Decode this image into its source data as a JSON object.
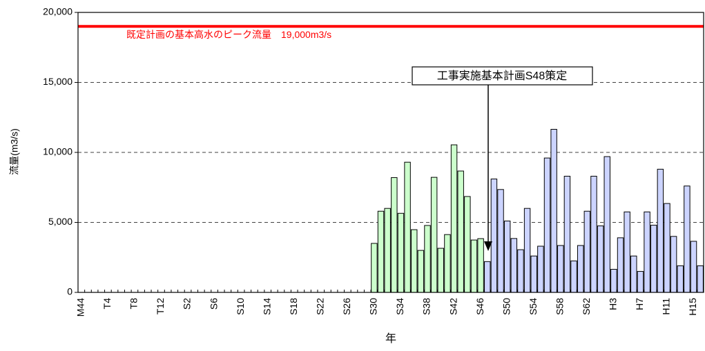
{
  "chart_data": {
    "type": "bar",
    "y_label": "流量(m3/s)",
    "x_label": "年",
    "categories": [
      "M44",
      null,
      null,
      null,
      "T4",
      null,
      null,
      null,
      "T8",
      null,
      null,
      null,
      "T12",
      null,
      null,
      null,
      "S2",
      null,
      null,
      null,
      "S6",
      null,
      null,
      null,
      "S10",
      null,
      null,
      null,
      "S14",
      null,
      null,
      null,
      "S18",
      null,
      null,
      null,
      "S22",
      null,
      null,
      null,
      "S26",
      null,
      null,
      null,
      "S30",
      null,
      null,
      null,
      "S34",
      null,
      null,
      null,
      "S38",
      null,
      null,
      null,
      "S42",
      null,
      null,
      null,
      "S46",
      null,
      null,
      null,
      "S50",
      null,
      null,
      null,
      "S54",
      null,
      null,
      null,
      "S58",
      null,
      null,
      null,
      "S62",
      null,
      null,
      null,
      "H3",
      null,
      null,
      null,
      "H7",
      null,
      null,
      null,
      "H11",
      null,
      null,
      null,
      "H15",
      null
    ],
    "series": [
      {
        "color": "#ccffcc",
        "values": [
          null,
          null,
          null,
          null,
          null,
          null,
          null,
          null,
          null,
          null,
          null,
          null,
          null,
          null,
          null,
          null,
          null,
          null,
          null,
          null,
          null,
          null,
          null,
          null,
          null,
          null,
          null,
          null,
          null,
          null,
          null,
          null,
          null,
          null,
          null,
          null,
          null,
          null,
          null,
          null,
          null,
          null,
          null,
          null,
          3500,
          5800,
          6000,
          8200,
          5650,
          9300,
          4480,
          3000,
          4780,
          8220,
          3150,
          4130,
          10540,
          8670,
          6850,
          3740,
          3840,
          null,
          null,
          null,
          null,
          null,
          null,
          null,
          null,
          null,
          null,
          null,
          null,
          null,
          null,
          null,
          null,
          null,
          null,
          null,
          null,
          null,
          null,
          null,
          null,
          null,
          null,
          null,
          null,
          null,
          null,
          null,
          null,
          null
        ]
      },
      {
        "color": "#ccd4ff",
        "values": [
          null,
          null,
          null,
          null,
          null,
          null,
          null,
          null,
          null,
          null,
          null,
          null,
          null,
          null,
          null,
          null,
          null,
          null,
          null,
          null,
          null,
          null,
          null,
          null,
          null,
          null,
          null,
          null,
          null,
          null,
          null,
          null,
          null,
          null,
          null,
          null,
          null,
          null,
          null,
          null,
          null,
          null,
          null,
          null,
          null,
          null,
          null,
          null,
          null,
          null,
          null,
          null,
          null,
          null,
          null,
          null,
          null,
          null,
          null,
          null,
          null,
          2200,
          8100,
          7350,
          5100,
          3850,
          3050,
          6000,
          2600,
          3300,
          9600,
          11650,
          3350,
          8300,
          2250,
          3350,
          5800,
          8300,
          4750,
          9700,
          1650,
          3900,
          5750,
          2600,
          1500,
          5750,
          4800,
          8800,
          6350,
          4000,
          1900,
          7600,
          3650,
          1900
        ]
      }
    ],
    "ylim": [
      0,
      20000
    ],
    "yticks": [
      {
        "value": 0,
        "label": "0"
      },
      {
        "value": 5000,
        "label": "5,000"
      },
      {
        "value": 10000,
        "label": "10,000"
      },
      {
        "value": 15000,
        "label": "15,000"
      },
      {
        "value": 20000,
        "label": "20,000"
      }
    ],
    "grid": true,
    "reference_line": {
      "value": 19000,
      "color": "#ff0000",
      "label": "既定計画の基本高水のピーク流量　19,000m3/s"
    },
    "annotation": "工事実施基本計画S48策定"
  }
}
